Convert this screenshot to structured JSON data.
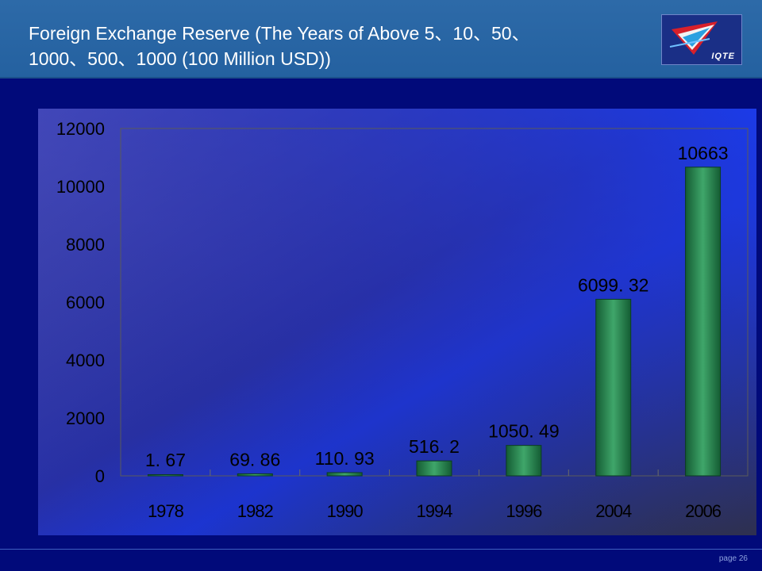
{
  "header": {
    "title_line1": "Foreign Exchange Reserve (The Years of Above 5、10、50、",
    "title_line2": "1000、500、1000 (100 Million USD))",
    "logo_text": "IQTE"
  },
  "footer": {
    "page_label": "page 26"
  },
  "colors": {
    "background": "#010a7a",
    "header": "#2a66a5",
    "bar": "#2e8b57",
    "label": "#000000"
  },
  "chart_data": {
    "type": "bar",
    "title": "",
    "xlabel": "",
    "ylabel": "",
    "categories": [
      "1978",
      "1982",
      "1990",
      "1994",
      "1996",
      "2004",
      "2006"
    ],
    "values": [
      1.67,
      69.86,
      110.93,
      516.2,
      1050.49,
      6099.32,
      10663
    ],
    "value_labels": [
      "1. 67",
      "69. 86",
      "110. 93",
      "516. 2",
      "1050. 49",
      "6099. 32",
      "10663"
    ],
    "y_ticks": [
      "0",
      "2000",
      "4000",
      "6000",
      "8000",
      "10000",
      "12000"
    ],
    "ylim": [
      0,
      12000
    ],
    "grid": false,
    "legend": "none"
  }
}
